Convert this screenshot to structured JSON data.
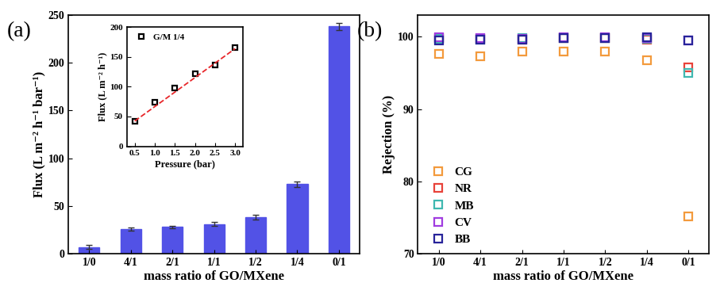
{
  "chart_data": [
    {
      "type": "bar",
      "title": "(a)",
      "x_label": "mass ratio of GO/MXene",
      "y_label": "Flux (L m⁻² h⁻¹ bar⁻¹)",
      "categories": [
        "1/0",
        "4/1",
        "2/1",
        "1/1",
        "1/2",
        "1/4",
        "0/1"
      ],
      "values": [
        7,
        26,
        28,
        31,
        38,
        73,
        238
      ],
      "errors": [
        2,
        1.5,
        1,
        2,
        2.5,
        3,
        4
      ],
      "color": "#5252e6",
      "ylim": [
        0,
        250
      ],
      "yticks": [
        0,
        50,
        100,
        150,
        200,
        250
      ]
    },
    {
      "type": "scatter",
      "title": "(b)",
      "x_label": "mass ratio of GO/MXene",
      "y_label": "Rejection (%)",
      "categories": [
        "1/0",
        "4/1",
        "2/1",
        "1/1",
        "1/2",
        "1/4",
        "0/1"
      ],
      "series": [
        {
          "name": "CG",
          "color": "#f39a3c",
          "marker": "square",
          "values": [
            97.6,
            97.3,
            98.0,
            98.0,
            98.0,
            96.8,
            75.2
          ]
        },
        {
          "name": "NR",
          "color": "#e8423a",
          "marker": "square",
          "values": [
            99.8,
            99.7,
            99.6,
            99.8,
            99.8,
            99.6,
            95.8
          ]
        },
        {
          "name": "MB",
          "color": "#3fb8b0",
          "marker": "square",
          "values": [
            99.7,
            99.6,
            99.8,
            99.8,
            99.8,
            99.7,
            95.0
          ]
        },
        {
          "name": "CV",
          "color": "#a03ce0",
          "marker": "square",
          "values": [
            99.9,
            99.8,
            99.7,
            99.9,
            99.9,
            99.8,
            99.5
          ]
        },
        {
          "name": "BB",
          "color": "#27239a",
          "marker": "square",
          "values": [
            99.5,
            99.6,
            99.6,
            99.8,
            99.8,
            99.9,
            99.5
          ]
        }
      ],
      "legend": "lower left",
      "ylim": [
        70,
        103
      ],
      "yticks": [
        70,
        80,
        90,
        100
      ]
    },
    {
      "type": "scatter",
      "x_label": "Pressure (bar)",
      "y_label": "Flux (L m⁻² h⁻¹)",
      "x": [
        0.5,
        1.0,
        1.5,
        2.0,
        2.5,
        3.0
      ],
      "series": [
        {
          "name": "G/M 1/4",
          "color": "#000000",
          "marker": "square",
          "values": [
            42,
            74,
            98,
            122,
            137,
            165
          ]
        },
        {
          "type": "line",
          "color": "#e8262a",
          "line_style": "dashed",
          "values": [
            42.3,
            66.6,
            90.9,
            115.2,
            139.5,
            163.8
          ]
        }
      ],
      "legend": "upper left",
      "xlim": [
        0.3,
        3.2
      ],
      "xticks": [
        {
          "value": 0.5,
          "label": "0.5"
        },
        {
          "value": 1,
          "label": "1.0"
        },
        {
          "value": 1.5,
          "label": "1.5"
        },
        {
          "value": 2,
          "label": "2.0"
        },
        {
          "value": 2.5,
          "label": "2.5"
        },
        {
          "value": 3,
          "label": "3.0"
        }
      ],
      "ylim": [
        0,
        200
      ],
      "yticks": [
        0,
        50,
        100,
        150,
        200
      ]
    }
  ]
}
